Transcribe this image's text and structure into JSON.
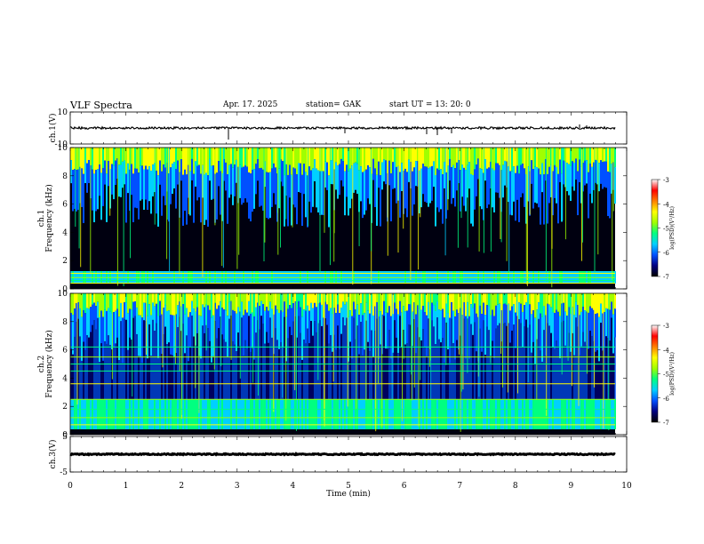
{
  "header": {
    "title": "VLF  Spectra",
    "date": "Apr. 17. 2025",
    "station": "station= GAK",
    "start": "start  UT  =   13: 20: 0"
  },
  "chart_data": {
    "type": "heatmap",
    "x": {
      "label": "Time  (min)",
      "range": [
        0,
        10
      ],
      "ticks": [
        "0",
        "1",
        "2",
        "3",
        "4",
        "5",
        "6",
        "7",
        "8",
        "9",
        "10"
      ]
    },
    "panels": [
      {
        "name": "ch1-waveform",
        "type": "line",
        "ylabel": "ch.1(V)",
        "ylim": [
          -10,
          10
        ],
        "yticks": [
          "10",
          "-10"
        ]
      },
      {
        "name": "ch1-spectrogram",
        "ylabel": "ch.1\nFrequency  (kHz)",
        "ylim": [
          0,
          10
        ],
        "yticks": [
          "10",
          "8",
          "6",
          "4",
          "2",
          "0"
        ]
      },
      {
        "name": "ch2-spectrogram",
        "ylabel": "ch.2\nFrequency  (kHz)",
        "ylim": [
          0,
          10
        ],
        "yticks": [
          "10",
          "8",
          "6",
          "4",
          "2",
          "0"
        ]
      },
      {
        "name": "ch3-waveform",
        "type": "line",
        "ylabel": "ch.3(V)",
        "ylim": [
          -5,
          5
        ],
        "yticks": [
          "5",
          "-5"
        ]
      }
    ],
    "colorbar": {
      "label": "log(PSD)(V²/Hz)",
      "range": [
        -7,
        -3
      ],
      "ticks": [
        "-3",
        "-4",
        "-5",
        "-6",
        "-7"
      ],
      "colors": [
        "#000000",
        "#000080",
        "#0050ff",
        "#00d0ff",
        "#00ff80",
        "#a0ff00",
        "#ffff00",
        "#ff8000",
        "#ff0000",
        "#ffffff"
      ]
    }
  }
}
